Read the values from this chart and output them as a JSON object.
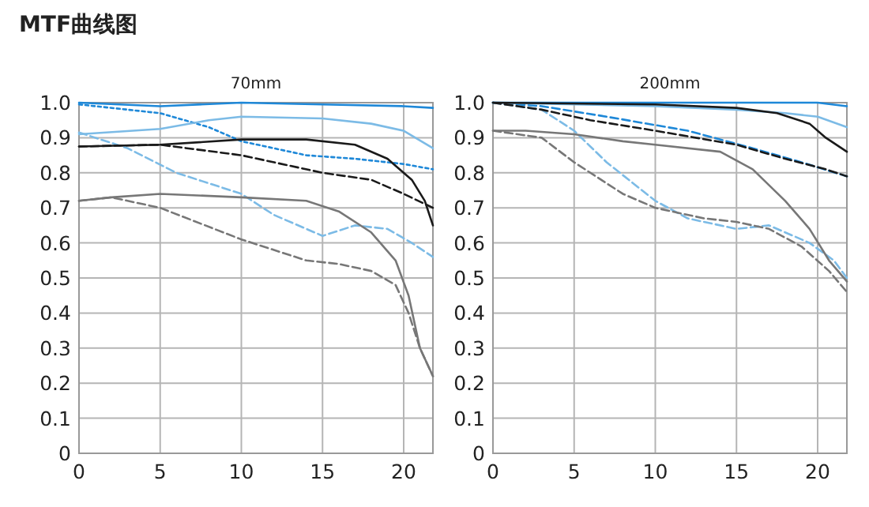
{
  "chart_data": [
    {
      "type": "line",
      "title": "70mm",
      "annotations": [
        "MTF曲线图"
      ],
      "xlim": [
        0,
        21.8
      ],
      "xticks": [
        0,
        5,
        10,
        15,
        20
      ],
      "ylim": [
        0,
        1
      ],
      "yticks": [
        0,
        0.1,
        0.2,
        0.3,
        0.4,
        0.5,
        0.6,
        0.7,
        0.8,
        0.9,
        {
          "value": 1,
          "label": "1.0"
        }
      ],
      "grid": true,
      "series": [
        {
          "color": "#1e88d8",
          "line_style": "solid",
          "x": [
            0,
            5,
            10,
            15,
            20,
            21.8
          ],
          "values": [
            1.0,
            0.99,
            1.0,
            0.995,
            0.99,
            0.985
          ]
        },
        {
          "color": "#1e88d8",
          "line_style": "dotted",
          "x": [
            0,
            5,
            8,
            10,
            14,
            17,
            20,
            21.8
          ],
          "values": [
            0.995,
            0.97,
            0.93,
            0.89,
            0.85,
            0.84,
            0.825,
            0.81
          ]
        },
        {
          "color": "#7cbbe6",
          "line_style": "solid",
          "x": [
            0,
            5,
            8,
            10,
            15,
            18,
            20,
            21.8
          ],
          "values": [
            0.91,
            0.925,
            0.95,
            0.96,
            0.955,
            0.94,
            0.92,
            0.87
          ]
        },
        {
          "color": "#7cbbe6",
          "line_style": "dashed",
          "x": [
            0,
            3,
            6,
            10,
            12,
            15,
            17,
            19,
            20.5,
            21.8
          ],
          "values": [
            0.915,
            0.87,
            0.8,
            0.74,
            0.68,
            0.62,
            0.65,
            0.64,
            0.6,
            0.56
          ]
        },
        {
          "color": "#1a1a1a",
          "line_style": "solid",
          "x": [
            0,
            5,
            10,
            14,
            17,
            19,
            20.5,
            21.3,
            21.8
          ],
          "values": [
            0.875,
            0.88,
            0.895,
            0.895,
            0.88,
            0.84,
            0.78,
            0.72,
            0.65
          ]
        },
        {
          "color": "#1a1a1a",
          "line_style": "dashed",
          "x": [
            0,
            5,
            10,
            15,
            18,
            20,
            21.8
          ],
          "values": [
            0.875,
            0.88,
            0.85,
            0.8,
            0.78,
            0.74,
            0.7
          ]
        },
        {
          "color": "#777777",
          "line_style": "solid",
          "x": [
            0,
            2,
            5,
            10,
            14,
            16,
            18,
            19.5,
            20.3,
            21,
            21.8
          ],
          "values": [
            0.72,
            0.73,
            0.74,
            0.73,
            0.72,
            0.69,
            0.63,
            0.55,
            0.45,
            0.3,
            0.22
          ]
        },
        {
          "color": "#777777",
          "line_style": "dashed",
          "x": [
            0,
            2,
            5,
            10,
            14,
            16,
            18,
            19.5,
            20.3,
            21,
            21.8
          ],
          "values": [
            0.72,
            0.73,
            0.7,
            0.61,
            0.55,
            0.54,
            0.52,
            0.48,
            0.4,
            0.3,
            0.22
          ]
        }
      ]
    },
    {
      "type": "line",
      "title": "200mm",
      "xlim": [
        0,
        21.8
      ],
      "xticks": [
        0,
        5,
        10,
        15,
        20
      ],
      "ylim": [
        0,
        1
      ],
      "yticks": [
        0,
        0.1,
        0.2,
        0.3,
        0.4,
        0.5,
        0.6,
        0.7,
        0.8,
        0.9,
        {
          "value": 1,
          "label": "1.0"
        }
      ],
      "grid": true,
      "series": [
        {
          "color": "#1e88d8",
          "line_style": "solid",
          "x": [
            0,
            10,
            20,
            21.8
          ],
          "values": [
            1.0,
            1.0,
            1.0,
            0.99
          ]
        },
        {
          "color": "#1e88d8",
          "line_style": "dashed",
          "x": [
            0,
            3,
            7,
            12,
            16,
            19,
            21.8
          ],
          "values": [
            1.0,
            0.99,
            0.96,
            0.92,
            0.87,
            0.83,
            0.79
          ]
        },
        {
          "color": "#7cbbe6",
          "line_style": "solid",
          "x": [
            0,
            10,
            15,
            18,
            20,
            21.8
          ],
          "values": [
            1.0,
            0.99,
            0.98,
            0.97,
            0.96,
            0.93
          ]
        },
        {
          "color": "#7cbbe6",
          "line_style": "dashed",
          "x": [
            0,
            3,
            5,
            7,
            10,
            12,
            15,
            17,
            19.5,
            21,
            21.8
          ],
          "values": [
            1.0,
            0.98,
            0.92,
            0.83,
            0.72,
            0.67,
            0.64,
            0.65,
            0.6,
            0.55,
            0.5
          ]
        },
        {
          "color": "#1a1a1a",
          "line_style": "solid",
          "x": [
            0,
            10,
            15,
            17.5,
            19.5,
            20.5,
            21.8
          ],
          "values": [
            1.0,
            0.995,
            0.985,
            0.97,
            0.94,
            0.9,
            0.86
          ]
        },
        {
          "color": "#1a1a1a",
          "line_style": "dashed",
          "x": [
            0,
            3,
            6,
            10,
            15,
            18,
            20.5,
            21.8
          ],
          "values": [
            1.0,
            0.98,
            0.95,
            0.92,
            0.88,
            0.84,
            0.81,
            0.79
          ]
        },
        {
          "color": "#777777",
          "line_style": "solid",
          "x": [
            0,
            2,
            5,
            8,
            10,
            14,
            16,
            18,
            19.5,
            20.7,
            21.8
          ],
          "values": [
            0.92,
            0.92,
            0.91,
            0.89,
            0.88,
            0.86,
            0.81,
            0.72,
            0.64,
            0.55,
            0.49
          ]
        },
        {
          "color": "#777777",
          "line_style": "dashed",
          "x": [
            0,
            3,
            5,
            8,
            10,
            13,
            15,
            17,
            19,
            20.7,
            21.8
          ],
          "values": [
            0.92,
            0.9,
            0.83,
            0.74,
            0.7,
            0.67,
            0.66,
            0.64,
            0.59,
            0.52,
            0.46
          ]
        }
      ]
    }
  ]
}
